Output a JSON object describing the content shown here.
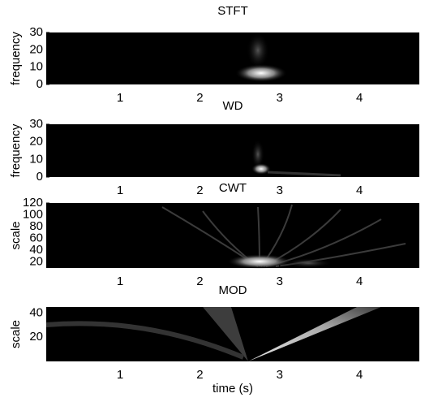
{
  "chart_data": [
    {
      "type": "heatmap",
      "title": "STFT",
      "ylabel": "frequency",
      "xlim": [
        0.075,
        4.75
      ],
      "xticks": [
        1,
        2,
        3,
        4
      ],
      "ylim": [
        0,
        30
      ],
      "yticks": [
        0,
        10,
        20,
        30
      ]
    },
    {
      "type": "heatmap",
      "title": "WD",
      "ylabel": "frequency",
      "xlim": [
        0.075,
        4.75
      ],
      "xticks": [
        1,
        2,
        3,
        4
      ],
      "ylim": [
        0,
        30
      ],
      "yticks": [
        0,
        10,
        20,
        30
      ]
    },
    {
      "type": "heatmap",
      "title": "CWT",
      "ylabel": "scale",
      "xlim": [
        0.075,
        4.75
      ],
      "xticks": [
        1,
        2,
        3,
        4
      ],
      "ylim": [
        10,
        120
      ],
      "yticks": [
        20,
        40,
        60,
        80,
        100,
        120
      ]
    },
    {
      "type": "heatmap",
      "title": "MOD",
      "ylabel": "scale",
      "xlabel": "time (s)",
      "xlim": [
        0.075,
        4.75
      ],
      "xticks": [
        1,
        2,
        3,
        4
      ],
      "ylim": [
        0,
        45
      ],
      "yticks": [
        20,
        40
      ]
    }
  ]
}
